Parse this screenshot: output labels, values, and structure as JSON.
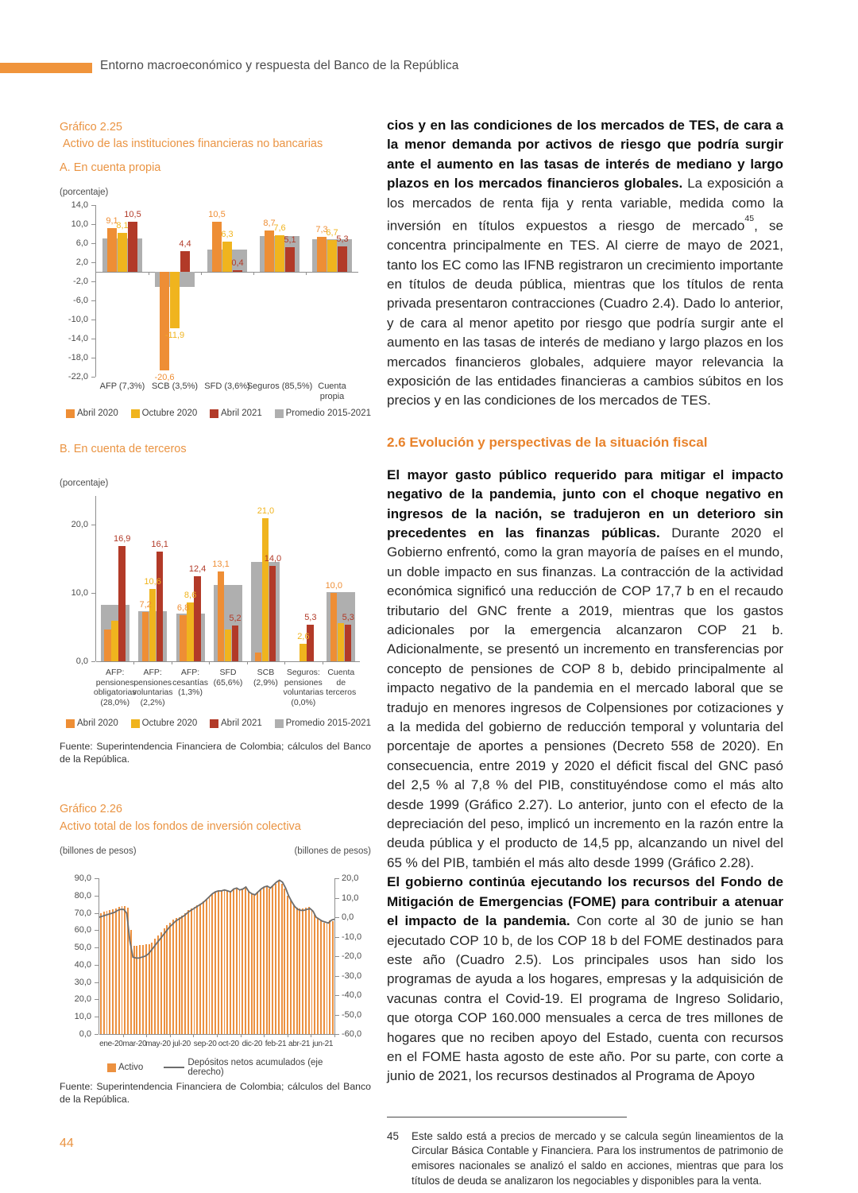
{
  "page": {
    "header": "Entorno macroeconómico y respuesta del Banco de la República",
    "page_number": "44"
  },
  "source": "Fuente: Superintendencia Financiera de Colombia; cálculos del Banco de la República.",
  "chart_data": [
    {
      "type": "bar",
      "title1": "Gráfico 2.25",
      "title2": "Activo de las instituciones financieras no bancarias",
      "subtitle": "A. En cuenta propia",
      "unit": "(porcentaje)",
      "ylim": [
        -22,
        14
      ],
      "yticks": [
        "14,0",
        "10,0",
        "6,0",
        "2,0",
        "-2,0",
        "-6,0",
        "-10,0",
        "-14,0",
        "-18,0",
        "-22,0"
      ],
      "categories": [
        "AFP (7,3%)",
        "SCB (3,5%)",
        "SFD (3,6%)",
        "Seguros (85,5%)",
        "Cuenta\npropia"
      ],
      "series": [
        {
          "name": "Abril 2020",
          "color": "#EE8E35",
          "values": [
            9.1,
            -20.6,
            10.5,
            8.7,
            7.3
          ],
          "labels": [
            "9,1",
            "-20,6",
            "10,5",
            "8,7",
            "7,3"
          ]
        },
        {
          "name": "Octubre 2020",
          "color": "#F0B41E",
          "values": [
            8.1,
            -11.9,
            6.3,
            7.6,
            6.7
          ],
          "labels": [
            "8,1",
            "-11,9",
            "6,3",
            "7,6",
            "6,7"
          ]
        },
        {
          "name": "Abril 2021",
          "color": "#B23A28",
          "values": [
            10.5,
            4.4,
            0.4,
            5.1,
            5.3
          ],
          "labels": [
            "10,5",
            "4,4",
            "0,4",
            "5,1",
            "5,3"
          ]
        },
        {
          "name": "Promedio 2015-2021",
          "color": "#AFAFAF",
          "background": true,
          "values": [
            7.0,
            -3.1,
            4.7,
            7.5,
            6.9
          ],
          "labels": [
            null,
            null,
            null,
            null,
            null
          ]
        }
      ]
    },
    {
      "type": "bar",
      "subtitle": "B. En cuenta de terceros",
      "unit": "(porcentaje)",
      "ylim": [
        0,
        24.2
      ],
      "yticks": [
        "20,0",
        "10,0",
        "0,0"
      ],
      "categories": [
        "AFP:\npensiones\nobligatorias\n(28,0%)",
        "AFP:\npensiones\nvoluntarias\n(2,2%)",
        "AFP:\ncesantías\n(1,3%)",
        "SFD\n(65,6%)",
        "SCB\n(2,9%)",
        "Seguros:\npensiones\nvoluntarias\n(0,0%)",
        "Cuenta\nde\nterceros"
      ],
      "series": [
        {
          "name": "Abril 2020",
          "color": "#EE8E35",
          "values": [
            4.6,
            7.2,
            6.8,
            13.1,
            1.3,
            0,
            10.0
          ],
          "labels": [
            null,
            "7,2",
            "6,8",
            "13,1",
            null,
            null,
            "10,0"
          ]
        },
        {
          "name": "Octubre 2020",
          "color": "#F0B41E",
          "values": [
            5.9,
            10.6,
            8.6,
            4.6,
            21.0,
            2.6,
            5.6
          ],
          "labels": [
            null,
            "10,6",
            "8,6",
            null,
            "21,0",
            "2,6",
            null
          ]
        },
        {
          "name": "Abril 2021",
          "color": "#B23A28",
          "values": [
            16.9,
            16.1,
            12.4,
            5.2,
            14.0,
            5.3,
            5.3
          ],
          "labels": [
            "16,9",
            "16,1",
            "12,4",
            "5,2",
            "14,0",
            "5,3",
            "5,3"
          ]
        },
        {
          "name": "Promedio 2015-2021",
          "color": "#AFAFAF",
          "background": true,
          "values": [
            8.3,
            7.3,
            7.0,
            11.2,
            14.5,
            0,
            10.1
          ],
          "labels": [
            null,
            null,
            null,
            null,
            null,
            null,
            null
          ]
        }
      ]
    },
    {
      "type": "bar-line",
      "title1": "Gráfico 2.26",
      "title2": "Activo total de los fondos de inversión colectiva",
      "unit_left": "(billones de pesos)",
      "unit_right": "(billones de pesos)",
      "ylim_left": [
        0,
        90
      ],
      "ylim_right": [
        -60,
        20
      ],
      "yticks_left": [
        "90,0",
        "80,0",
        "70,0",
        "60,0",
        "50,0",
        "40,0",
        "30,0",
        "20,0",
        "10,0",
        "0,0"
      ],
      "yticks_right": [
        "20,0",
        "10,0",
        "0,0",
        "-10,0",
        "-20,0",
        "-30,0",
        "-40,0",
        "-50,0",
        "-60,0"
      ],
      "xticks": [
        "ene-20",
        "mar-20",
        "may-20",
        "jul-20",
        "sep-20",
        "oct-20",
        "dic-20",
        "feb-21",
        "abr-21",
        "jun-21"
      ],
      "bar_series_name": "Activo",
      "line_series_name": "Depósitos netos acumulados (eje derecho)",
      "bar_color": "#EC9140",
      "line_color": "#6D6D6D",
      "bars": [
        70,
        70.5,
        71,
        71.5,
        72,
        72.5,
        73.5,
        74,
        74,
        73,
        60,
        51,
        51,
        51.5,
        51.5,
        52,
        52,
        53,
        55,
        57,
        59,
        61,
        63,
        64.5,
        66,
        67,
        67.5,
        68.5,
        70,
        71.5,
        72.5,
        73.5,
        74.5,
        75.5,
        76.5,
        78,
        79.5,
        81,
        82,
        82.5,
        82.5,
        83,
        82.5,
        82,
        83.5,
        84,
        83,
        83.5,
        84.5,
        82,
        81,
        80.5,
        82,
        83.5,
        84.5,
        85,
        84,
        85.5,
        87,
        88,
        87,
        84,
        80,
        77,
        74.5,
        73,
        72.5,
        72.5,
        73,
        73.5,
        72,
        69,
        67,
        65.5,
        64.5,
        64,
        65.5,
        65
      ],
      "line": [
        0,
        0.5,
        1,
        1.5,
        2,
        2.5,
        3.5,
        4,
        4,
        2,
        -12,
        -20.5,
        -21,
        -21,
        -20.5,
        -20,
        -19,
        -17,
        -15,
        -13,
        -11,
        -9,
        -7,
        -5,
        -3.5,
        -2,
        -1,
        0,
        1,
        2.5,
        3.5,
        4.5,
        5.5,
        6.5,
        7.5,
        9,
        10.5,
        12,
        13,
        13.5,
        13.5,
        14,
        13.5,
        13,
        14.5,
        15,
        14,
        14.5,
        15.5,
        13,
        12,
        11.5,
        13,
        14.5,
        15.5,
        16,
        15,
        16.5,
        18,
        19,
        18,
        15,
        11,
        8,
        5.5,
        4,
        3.5,
        3.5,
        4,
        4.5,
        3,
        0,
        -1,
        -2,
        -2.5,
        -3,
        -1.5,
        -1
      ]
    }
  ],
  "article": {
    "p1_bold": "cios y en las condiciones de los mercados de TES, de cara a la menor demanda por activos de riesgo que podría surgir ante el aumento en las tasas de interés de mediano y largo plazos en los mercados financieros globales.",
    "p1_t1": " La exposición a los mercados de renta fija y renta variable, medida como la inversión en títulos expuestos a riesgo de mercado",
    "p1_sup": "45",
    "p1_t2": ", se concentra principalmente en TES. Al cierre de mayo de 2021, tanto los EC como las IFNB registraron un crecimiento importante en títulos de deuda pública, mientras que los títulos de renta privada presentaron contracciones (Cuadro 2.4). Dado lo anterior, y de cara al menor apetito por riesgo que podría surgir ante el aumento en las tasas de interés de mediano y largo plazos en los mercados financieros globales, adquiere mayor relevancia la exposición de las entidades financieras a cambios súbitos en los precios y en las condiciones de los mercados de TES.",
    "section_heading": "2.6 Evolución y perspectivas de la situación fiscal",
    "p2_bold": "El mayor gasto público requerido para mitigar el impacto negativo de la pandemia, junto con el choque negativo en ingresos de la nación, se tradujeron en un deterioro sin precedentes en las finanzas públicas.",
    "p2_text": " Durante 2020 el Gobierno enfrentó, como la gran mayoría de países en el mundo, un doble impacto en sus finanzas. La contracción de la actividad económica significó una reducción de COP 17,7 b en el recaudo tributario del GNC frente a 2019, mientras que los gastos adicionales por la emergencia alcanzaron COP 21 b. Adicionalmente, se presentó un incremento en transferencias por concepto de pensiones de COP 8 b, debido principalmente al impacto negativo de la pandemia en el mercado laboral que se tradujo en menores ingresos de Colpensiones por cotizaciones y a la medida del gobierno de reducción temporal y voluntaria del porcentaje de aportes a pensiones (Decreto 558 de 2020). En consecuencia, entre 2019 y 2020 el déficit fiscal del GNC pasó del 2,5 % al 7,8 % del PIB, constituyéndose como el más alto desde 1999 (Gráfico 2.27). Lo anterior, junto con el efecto de la depreciación del peso, implicó un incremento en la razón entre la deuda pública y el producto de 14,5 pp, alcanzando un nivel del 65 % del PIB, también el más alto desde 1999 (Gráfico 2.28).",
    "p3_bold": "El gobierno continúa ejecutando los recursos del Fondo de Mitigación de Emergencias (FOME) para contribuir a atenuar el impacto de la pandemia.",
    "p3_text": " Con corte al 30 de junio se han ejecutado COP 10 b, de los COP 18 b del FOME destinados para este año (Cuadro 2.5). Los principales usos han sido los programas de ayuda a los hogares, empresas y la adquisición de vacunas contra el Covid-19. El programa de Ingreso Solidario, que otorga COP 160.000 mensuales a cerca de tres millones de hogares que no reciben apoyo del Estado, cuenta con recursos en el FOME hasta agosto de este año. Por su parte, con corte a junio de 2021, los recursos destinados al Programa de Apoyo",
    "footnote_num": "45",
    "footnote_text": "Este saldo está a precios de mercado y se calcula según lineamientos de la Circular Básica Contable y Financiera. Para los instrumentos de patrimonio de emisores nacionales se analizó el saldo en acciones, mientras que para los títulos de deuda se analizaron los negociables y disponibles para la venta."
  }
}
